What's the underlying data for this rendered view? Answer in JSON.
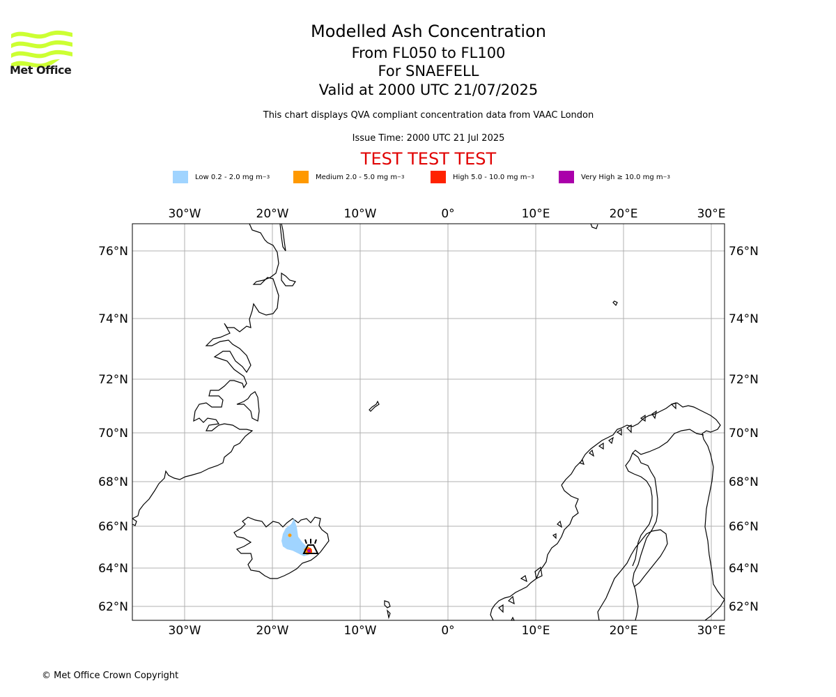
{
  "header": {
    "title": "Modelled Ash Concentration",
    "levels": "From FL050 to FL100",
    "volcano": "For SNAEFELL",
    "valid": "Valid at 2000 UTC 21/07/2025",
    "subtitle": "This chart displays QVA compliant concentration data from VAAC London",
    "issue_time": "Issue Time: 2000 UTC 21 Jul 2025",
    "test_banner": "TEST TEST TEST",
    "test_color": "#e00000"
  },
  "logo": {
    "text": "Met Office",
    "icon": "met-office-wave-logo",
    "color": "#ccff33"
  },
  "legend": [
    {
      "label": "Low 0.2 - 2.0 mg m",
      "unit_sup": "−3",
      "color": "#a0d4ff"
    },
    {
      "label": "Medium 2.0 - 5.0 mg m",
      "unit_sup": "−3",
      "color": "#ff9900"
    },
    {
      "label": "High 5.0 - 10.0 mg m",
      "unit_sup": "−3",
      "color": "#ff2200"
    },
    {
      "label": "Very High  ≥  10.0 mg m",
      "unit_sup": "−3",
      "color": "#aa00aa"
    }
  ],
  "map": {
    "lon_ticks": [
      "30°W",
      "20°W",
      "10°W",
      "0°",
      "10°E",
      "20°E",
      "30°E"
    ],
    "lat_ticks": [
      "76°N",
      "74°N",
      "72°N",
      "70°N",
      "68°N",
      "66°N",
      "64°N",
      "62°N"
    ],
    "volcano_icon": "volcano-icon"
  },
  "footer": {
    "copyright": "© Met Office Crown Copyright"
  }
}
